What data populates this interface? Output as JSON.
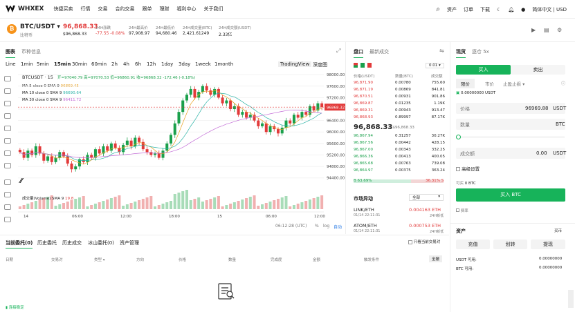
{
  "nav": {
    "brand": "WHXEX",
    "items": [
      "快捷买卖",
      "行情",
      "交易",
      "合约交易",
      "跟单",
      "理财",
      "福利中心",
      "关于我们"
    ],
    "right": [
      "资产",
      "订单",
      "下载",
      "简体中文 | USD"
    ]
  },
  "ticker": {
    "pair": "BTC/USDT",
    "sub": "比特币",
    "price": "96,868.33",
    "price_usd": "$96,868.33",
    "stats": [
      {
        "label": "24H涨跌",
        "value": "-77.55 -0.08%",
        "color": "red"
      },
      {
        "label": "24H最高价",
        "value": "97,908.97"
      },
      {
        "label": "24H最低价",
        "value": "94,680.46"
      },
      {
        "label": "24H成交量(BTC)",
        "value": "2,421.61249"
      },
      {
        "label": "24H成交额(USDT)",
        "value": "2.33亿"
      }
    ]
  },
  "chart": {
    "tabs": [
      "图表",
      "币种信息"
    ],
    "intervals": [
      "Line",
      "1min",
      "5min",
      "15min",
      "30min",
      "60min",
      "2h",
      "4h",
      "6h",
      "12h",
      "1day",
      "3day",
      "1week",
      "1month"
    ],
    "active_interval": "15min",
    "view_tabs": [
      "TradingView",
      "深度图"
    ],
    "symbol": "BTCUSDT · 15",
    "ohlc": "开=97040.79 高=97070.53 低=96860.91 收=96868.32 -172.46 (-0.18%)",
    "ma": [
      {
        "label": "MA 5 close 0 SMA 9",
        "value": "96869.45",
        "color": "#e8a020"
      },
      {
        "label": "MA 10 close 0 SMA 9",
        "value": "96690.64",
        "color": "#2ab3a6"
      },
      {
        "label": "MA 30 close 0 SMA 9",
        "value": "96411.72",
        "color": "#c26ad6"
      }
    ],
    "volume_label": "成交量(Volume) SMA 9",
    "volume_value": "19.8",
    "yticks": [
      "98000.00",
      "97600.00",
      "97200.00",
      "96800.00",
      "96400.00",
      "96000.00",
      "95600.00",
      "95200.00",
      "94800.00",
      "94400.00"
    ],
    "price_tag": "96868.32",
    "xticks": [
      "14",
      "06:00",
      "12:00",
      "18:00",
      "15",
      "06:00",
      "12:00"
    ],
    "footer": {
      "time": "06:12:28 (UTC)",
      "pct": "%",
      "log": "log",
      "auto": "自动"
    }
  },
  "chart_data": {
    "type": "candlestick",
    "ylim": [
      94200,
      98100
    ],
    "note_ticks": "price axis USDT",
    "closes": [
      95300,
      95100,
      95350,
      95200,
      95500,
      95250,
      95000,
      95150,
      94950,
      95100,
      95300,
      95150,
      94900,
      94700,
      94800,
      95050,
      94950,
      95200,
      95100,
      95400,
      95250,
      95500,
      95350,
      95600,
      95450,
      95300,
      95550,
      95700,
      95500,
      95800,
      95650,
      95400,
      95300,
      95200,
      95250,
      95100,
      95350,
      95600,
      95900,
      96300,
      96700,
      97100,
      97300,
      97500,
      97200,
      97400,
      97600,
      97450,
      97300,
      97500,
      97200,
      97000,
      97100,
      96800,
      96900,
      96600,
      96700,
      96500,
      96600,
      96400,
      96200,
      96300,
      96000,
      96200,
      96100,
      95950,
      96150,
      96400,
      96300,
      96600,
      96500,
      96700,
      96600,
      96900,
      96750,
      97000,
      96868
    ]
  },
  "orderbook": {
    "tabs": [
      "盘口",
      "最新成交"
    ],
    "step": "0.01",
    "headers": [
      "价格(USDT)",
      "数量(BTC)",
      "成交额"
    ],
    "asks": [
      [
        "96,871.90",
        "0.00780",
        "755.60"
      ],
      [
        "96,871.19",
        "0.00869",
        "841.81"
      ],
      [
        "96,870.51",
        "0.00931",
        "901.86"
      ],
      [
        "96,869.87",
        "0.01235",
        "1.19K"
      ],
      [
        "96,869.31",
        "0.00943",
        "913.47"
      ],
      [
        "96,868.93",
        "0.89997",
        "87.17K"
      ]
    ],
    "mid": "96,868.33",
    "mid_usd": "≈ $96,868.33",
    "bids": [
      [
        "96,867.94",
        "0.31257",
        "30.27K"
      ],
      [
        "96,867.56",
        "0.00442",
        "428.15"
      ],
      [
        "96,867.00",
        "0.00343",
        "332.25"
      ],
      [
        "96,866.36",
        "0.00413",
        "400.05"
      ],
      [
        "96,865.68",
        "0.00763",
        "739.08"
      ],
      [
        "96,864.97",
        "0.00375",
        "363.24"
      ]
    ],
    "buy_pct": "B 63.69%",
    "sell_pct": "36.31% S"
  },
  "market": {
    "title": "市场异动",
    "filter": "全部",
    "items": [
      {
        "pair": "LINK/ETH",
        "time": "01/14 22:11:31",
        "value": "0.004163 ETH",
        "tag": "24H新低"
      },
      {
        "pair": "ATOM/ETH",
        "time": "01/14 22:11:31",
        "value": "0.000753 ETH",
        "tag": "24H新低"
      }
    ]
  },
  "orders": {
    "tabs": [
      "当前委托(0)",
      "历史委托",
      "历史成交",
      "冰山委托(0)",
      "资产管理"
    ],
    "checkbox": "只看当前交易对",
    "columns": [
      "日期",
      "交易对",
      "类型",
      "方向",
      "价格",
      "数量",
      "完成度",
      "金额",
      "触发条件"
    ],
    "all_btn": "全撤"
  },
  "trade": {
    "tabs": [
      "现货",
      "逐仓 5x"
    ],
    "buy": "买入",
    "sell": "卖出",
    "types": [
      "限价",
      "市价",
      "止盈止损"
    ],
    "avail": "0.00000000 USDT",
    "price_label": "价格",
    "price_value": "96969.88",
    "price_unit": "USDT",
    "qty_label": "数量",
    "qty_unit": "BTC",
    "amount_label": "成交额",
    "amount_value": "0.00",
    "amount_unit": "USDT",
    "advanced": "高级设置",
    "buyable_label": "可买",
    "buyable_value": "0 BTC",
    "buy_btn": "买入 BTC",
    "fee": "费率",
    "assets_title": "资产",
    "assets_link": "买币",
    "asset_btns": [
      "充值",
      "划转",
      "提现"
    ],
    "usdt_label": "USDT 可用:",
    "usdt_value": "0.00000000",
    "btc_label": "BTC 可用:",
    "btc_value": "0.00000000"
  },
  "status": {
    "text": "连接稳定"
  },
  "colors": {
    "up": "#1aa04b",
    "down": "#e23a3a",
    "accent": "#17b35a"
  }
}
